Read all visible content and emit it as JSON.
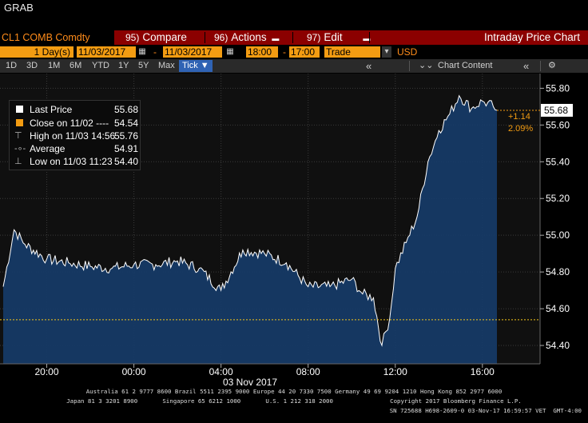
{
  "header": {
    "grab": "GRAB"
  },
  "toolbar": {
    "ticker": "CL1 COMB Comdty",
    "compare_num": "95)",
    "compare_label": "Compare",
    "actions_num": "96)",
    "actions_label": "Actions",
    "edit_num": "97)",
    "edit_label": "Edit",
    "title": "Intraday Price Chart"
  },
  "settings": {
    "period": "1 Day(s)",
    "start_date": "11/03/2017",
    "end_date": "11/03/2017",
    "start_time": "18:00",
    "end_time": "17:00",
    "field": "Trade",
    "currency": "USD"
  },
  "range_bar": {
    "periods": [
      "1D",
      "3D",
      "1M",
      "6M",
      "YTD",
      "1Y",
      "5Y",
      "Max"
    ],
    "tick": "Tick ▼",
    "chart_content": "Chart Content"
  },
  "legend": {
    "last_label": "Last Price",
    "last_value": "55.68",
    "close_label": "Close on 11/02 ----",
    "close_value": "54.54",
    "high_label": "High on 11/03 14:56",
    "high_value": "55.76",
    "avg_label": "Average",
    "avg_value": "54.91",
    "low_label": "Low on 11/03 11:23",
    "low_value": "54.40"
  },
  "annotations": {
    "last_tag": "55.68",
    "change": "+1.14",
    "change_pct": "2.09%"
  },
  "colors": {
    "background": "#000000",
    "area_fill": "#163a66",
    "price_line": "#ffffff",
    "close_line": "#f5c518",
    "accent_orange": "#f39c12",
    "toolbar_red": "#8b0000"
  },
  "chart_data": {
    "type": "area",
    "series": [
      {
        "name": "Last Price",
        "x": [
          "18:00",
          "18:30",
          "19:00",
          "20:00",
          "21:00",
          "22:00",
          "23:00",
          "00:00",
          "01:00",
          "02:00",
          "03:00",
          "04:00",
          "05:00",
          "06:00",
          "07:00",
          "08:00",
          "09:00",
          "10:00",
          "10:30",
          "11:00",
          "11:23",
          "11:45",
          "12:00",
          "12:30",
          "13:00",
          "13:30",
          "14:00",
          "14:30",
          "14:56",
          "15:30",
          "16:00",
          "16:30",
          "16:40"
        ],
        "values": [
          54.72,
          55.03,
          54.95,
          54.87,
          54.85,
          54.83,
          54.82,
          54.84,
          54.84,
          54.86,
          54.82,
          54.7,
          54.92,
          54.9,
          54.85,
          54.72,
          54.72,
          54.76,
          54.68,
          54.66,
          54.4,
          54.55,
          54.82,
          54.96,
          55.1,
          55.4,
          55.57,
          55.66,
          55.76,
          55.69,
          55.73,
          55.7,
          55.68
        ]
      }
    ],
    "reference_line": {
      "name": "Close on 11/02",
      "value": 54.54
    },
    "x_date_label": "03 Nov 2017",
    "x_ticks": [
      "20:00",
      "00:00",
      "04:00",
      "08:00",
      "12:00",
      "16:00"
    ],
    "y_ticks": [
      54.4,
      54.6,
      54.8,
      55.0,
      55.2,
      55.4,
      55.6,
      55.8
    ],
    "ylim": [
      54.3,
      55.88
    ],
    "grid": true,
    "legend": "top-left"
  },
  "footer": {
    "line1": "Australia 61 2 9777 8600 Brazil 5511 2395 9000 Europe 44 20 7330 7500 Germany 49 69 9204 1210 Hong Kong 852 2977 6000",
    "line2": "Japan 81 3 3201 8900       Singapore 65 6212 1000       U.S. 1 212 318 2000                Copyright 2017 Bloomberg Finance L.P.",
    "line3": "SN 725688 H698-2609-0 03-Nov-17 16:59:57 VET  GMT-4:00"
  }
}
